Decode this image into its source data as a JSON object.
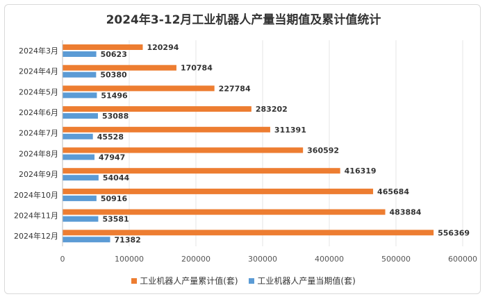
{
  "chart_data": {
    "type": "bar",
    "orientation": "horizontal",
    "title": "2024年3-12月工业机器人产量当期值及累计值统计",
    "categories": [
      "2024年3月",
      "2024年4月",
      "2024年5月",
      "2024年6月",
      "2024年7月",
      "2024年8月",
      "2024年9月",
      "2024年10月",
      "2024年11月",
      "2024年12月"
    ],
    "series": [
      {
        "name": "工业机器人产量累计值(套)",
        "color": "#ed7d31",
        "values": [
          120294,
          170784,
          227784,
          283202,
          311391,
          360592,
          416319,
          465684,
          483884,
          556369
        ]
      },
      {
        "name": "工业机器人产量当期值(套)",
        "color": "#5b9bd5",
        "values": [
          50623,
          50380,
          51496,
          53088,
          45528,
          47947,
          54044,
          50916,
          53581,
          71382
        ]
      }
    ],
    "xlim": [
      0,
      600000
    ],
    "xticks": [
      0,
      100000,
      200000,
      300000,
      400000,
      500000,
      600000
    ],
    "grid": true,
    "legend_position": "bottom"
  }
}
